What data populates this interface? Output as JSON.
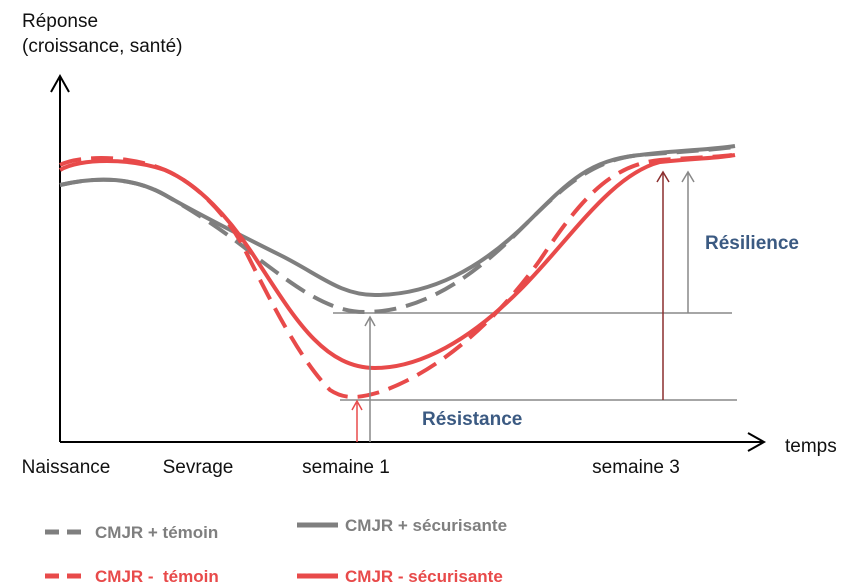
{
  "y_axis_label": [
    "Réponse",
    "(croissance, santé)"
  ],
  "x_axis_label": "temps",
  "x_labels": [
    "Naissance",
    "Sevrage",
    "semaine 1",
    "semaine 3"
  ],
  "annotations": {
    "resilience": "Résilience",
    "resistance": "Résistance"
  },
  "legend": [
    "CMJR + témoin",
    "CMJR + sécurisante",
    "CMJR -  témoin",
    "CMJR - sécurisante"
  ]
}
